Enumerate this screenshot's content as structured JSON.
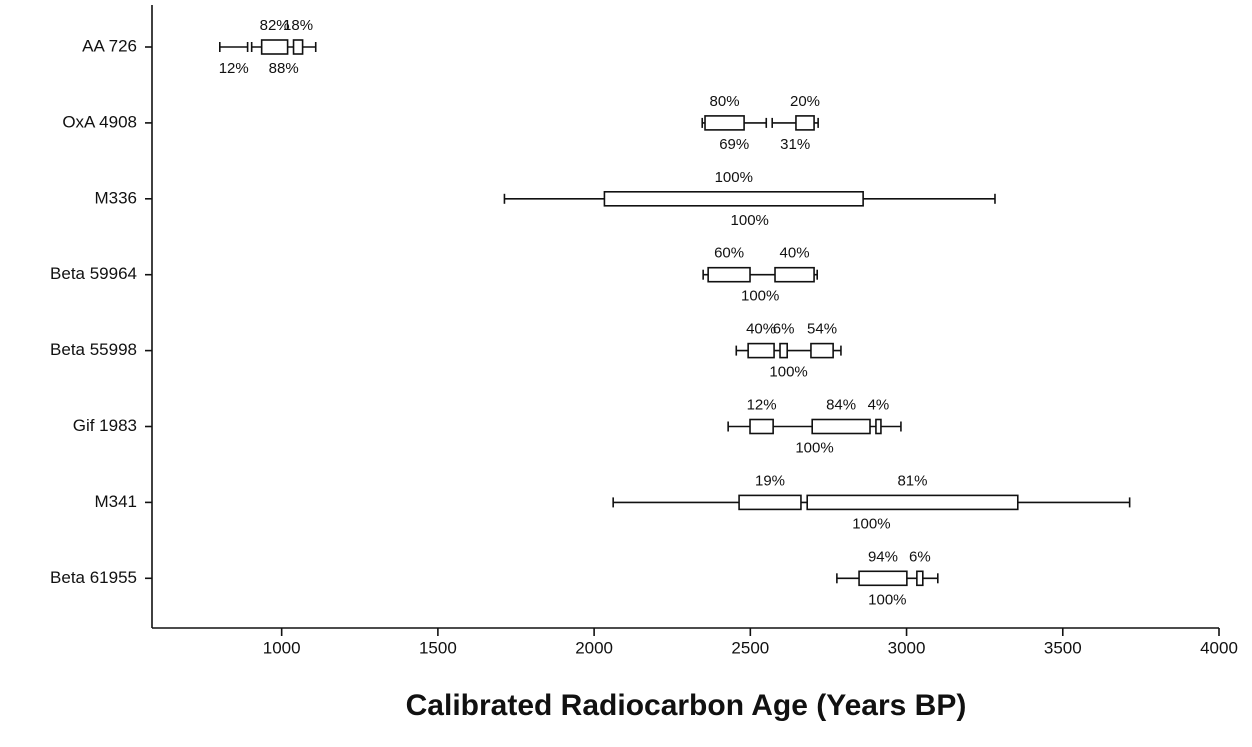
{
  "chart_data": {
    "type": "range",
    "x_label": "Calibrated Radiocarbon Age (Years BP)",
    "xlim": [
      585,
      4000
    ],
    "xticks": [
      1000,
      1500,
      2000,
      2500,
      3000,
      3500,
      4000
    ],
    "samples": [
      {
        "name": "AA 726",
        "two_sigma": [
          {
            "range": [
              802,
              891
            ],
            "percent": {
              "value": 12,
              "label": "12%"
            }
          },
          {
            "range": [
              904,
              1109
            ],
            "percent": {
              "value": 88,
              "label": "88%"
            }
          }
        ],
        "one_sigma": [
          {
            "range": [
              936,
              1019
            ],
            "percent": {
              "value": 82,
              "label": "82%"
            }
          },
          {
            "range": [
              1038,
              1067
            ],
            "percent": {
              "value": 18,
              "label": "18%"
            }
          }
        ]
      },
      {
        "name": "OxA 4908",
        "two_sigma": [
          {
            "range": [
              2346,
              2551
            ],
            "percent": {
              "value": 69,
              "label": "69%"
            }
          },
          {
            "range": [
              2570,
              2717
            ],
            "percent": {
              "value": 31,
              "label": "31%"
            }
          }
        ],
        "one_sigma": [
          {
            "range": [
              2355,
              2480
            ],
            "percent": {
              "value": 80,
              "label": "80%"
            }
          },
          {
            "range": [
              2646,
              2704
            ],
            "percent": {
              "value": 20,
              "label": "20%"
            }
          }
        ]
      },
      {
        "name": "M336",
        "two_sigma": [
          {
            "range": [
              1713,
              3283
            ],
            "percent": {
              "value": 100,
              "label": "100%"
            }
          }
        ],
        "one_sigma": [
          {
            "range": [
              2033,
              2861
            ],
            "percent": {
              "value": 100,
              "label": "100%"
            }
          }
        ]
      },
      {
        "name": "Beta 59964",
        "two_sigma": [
          {
            "range": [
              2349,
              2714
            ],
            "percent": {
              "value": 100,
              "label": "100%"
            }
          }
        ],
        "one_sigma": [
          {
            "range": [
              2365,
              2499
            ],
            "percent": {
              "value": 60,
              "label": "60%"
            }
          },
          {
            "range": [
              2579,
              2704
            ],
            "percent": {
              "value": 40,
              "label": "40%"
            }
          }
        ]
      },
      {
        "name": "Beta 55998",
        "two_sigma": [
          {
            "range": [
              2455,
              2790
            ],
            "percent": {
              "value": 100,
              "label": "100%"
            }
          }
        ],
        "one_sigma": [
          {
            "range": [
              2493,
              2576
            ],
            "percent": {
              "value": 40,
              "label": "40%"
            }
          },
          {
            "range": [
              2595,
              2618
            ],
            "percent": {
              "value": 6,
              "label": "6%"
            }
          },
          {
            "range": [
              2694,
              2765
            ],
            "percent": {
              "value": 54,
              "label": "54%"
            }
          }
        ]
      },
      {
        "name": "Gif 1983",
        "two_sigma": [
          {
            "range": [
              2429,
              2982
            ],
            "percent": {
              "value": 100,
              "label": "100%"
            }
          }
        ],
        "one_sigma": [
          {
            "range": [
              2499,
              2573
            ],
            "percent": {
              "value": 12,
              "label": "12%"
            }
          },
          {
            "range": [
              2698,
              2883
            ],
            "percent": {
              "value": 84,
              "label": "84%"
            }
          },
          {
            "range": [
              2902,
              2918
            ],
            "percent": {
              "value": 4,
              "label": "4%"
            }
          }
        ]
      },
      {
        "name": "M341",
        "two_sigma": [
          {
            "range": [
              2061,
              3714
            ],
            "percent": {
              "value": 100,
              "label": "100%"
            }
          }
        ],
        "one_sigma": [
          {
            "range": [
              2464,
              2662
            ],
            "percent": {
              "value": 19,
              "label": "19%"
            }
          },
          {
            "range": [
              2682,
              3356
            ],
            "percent": {
              "value": 81,
              "label": "81%"
            }
          }
        ]
      },
      {
        "name": "Beta 61955",
        "two_sigma": [
          {
            "range": [
              2777,
              3100
            ],
            "percent": {
              "value": 100,
              "label": "100%"
            }
          }
        ],
        "one_sigma": [
          {
            "range": [
              2848,
              3001
            ],
            "percent": {
              "value": 94,
              "label": "94%"
            }
          },
          {
            "range": [
              3033,
              3052
            ],
            "percent": {
              "value": 6,
              "label": "6%"
            }
          }
        ]
      }
    ]
  }
}
